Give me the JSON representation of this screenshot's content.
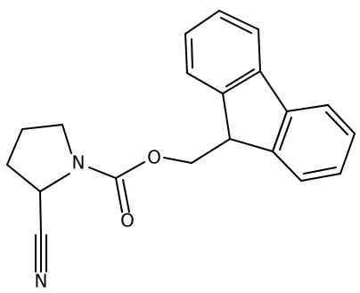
{
  "atoms": {
    "ring_nitrogen": "N",
    "ester_oxygen": "O",
    "carbonyl_oxygen": "O",
    "nitrile_nitrogen": "N"
  }
}
